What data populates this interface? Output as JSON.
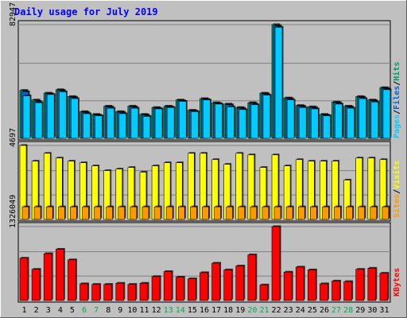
{
  "chart_data": {
    "title": "Daily usage for July 2019",
    "type": "bar",
    "categories": [
      "1",
      "2",
      "3",
      "4",
      "5",
      "6",
      "7",
      "8",
      "9",
      "10",
      "11",
      "12",
      "13",
      "14",
      "15",
      "16",
      "17",
      "18",
      "19",
      "20",
      "21",
      "22",
      "23",
      "24",
      "25",
      "26",
      "27",
      "28",
      "29",
      "30",
      "31"
    ],
    "weekend_days": [
      "6",
      "7",
      "13",
      "14",
      "20",
      "21",
      "27",
      "28"
    ],
    "colors": {
      "background": "#c0c0c0",
      "title": "#0000ff",
      "pages": "#00ccff",
      "files": "#0066cc",
      "hits": "#009966",
      "sites": "#ff9900",
      "visits": "#ffff00",
      "kbytes": "#ff0000",
      "day_label": "#0000ff",
      "weekend_label": "#00aa55"
    },
    "panels": [
      {
        "id": "hits-files-pages",
        "ytick": "82947",
        "ymax": 82947,
        "legend": [
          {
            "text": "Pages",
            "color": "#00ccff"
          },
          {
            "text": "/",
            "color": "#000000"
          },
          {
            "text": "Files",
            "color": "#0066cc"
          },
          {
            "text": "/",
            "color": "#000000"
          },
          {
            "text": "Hits",
            "color": "#009966"
          }
        ],
        "series": [
          {
            "name": "Hits",
            "color": "#009966",
            "values": [
              35000,
              28000,
              33000,
              35500,
              30500,
              19500,
              17500,
              23500,
              19500,
              23500,
              17500,
              22500,
              23500,
              28000,
              20500,
              29000,
              26000,
              25000,
              22500,
              26000,
              33000,
              82947,
              29500,
              24000,
              23000,
              17500,
              26500,
              23500,
              30500,
              28000,
              37000
            ]
          },
          {
            "name": "Files",
            "color": "#0066cc",
            "values": [
              34000,
              27000,
              32500,
              35000,
              30000,
              19000,
              17000,
              23000,
              19000,
              23000,
              17000,
              22000,
              23000,
              27500,
              20000,
              28500,
              25500,
              24500,
              22000,
              25500,
              32500,
              82000,
              29000,
              23500,
              22500,
              17000,
              26000,
              23000,
              30000,
              27500,
              36500
            ]
          },
          {
            "name": "Pages",
            "color": "#00ccff",
            "values": [
              31000,
              26000,
              32000,
              34000,
              29000,
              18000,
              16500,
              22000,
              18000,
              22000,
              16000,
              21500,
              22500,
              27000,
              19500,
              28000,
              25000,
              23000,
              21000,
              24500,
              31500,
              81000,
              28000,
              22500,
              21500,
              16500,
              25000,
              22000,
              29000,
              26500,
              35500
            ]
          }
        ]
      },
      {
        "id": "visits-sites",
        "ytick": "4697",
        "ymax": 4697,
        "legend": [
          {
            "text": "Sites",
            "color": "#ff9900"
          },
          {
            "text": "/",
            "color": "#000000"
          },
          {
            "text": "Visits",
            "color": "#ffff00"
          }
        ],
        "series": [
          {
            "name": "Visits",
            "color": "#ffff00",
            "values": [
              4697,
              3700,
              4200,
              3900,
              3700,
              3600,
              3400,
              3100,
              3200,
              3300,
              3000,
              3400,
              3600,
              3600,
              4200,
              4200,
              3800,
              3500,
              4200,
              4100,
              3300,
              4100,
              3400,
              3800,
              3700,
              3700,
              3700,
              2500,
              3900,
              3900,
              3800
            ]
          },
          {
            "name": "Sites",
            "color": "#ff9900",
            "values": [
              800,
              800,
              800,
              800,
              800,
              800,
              800,
              800,
              800,
              800,
              800,
              800,
              800,
              800,
              800,
              800,
              800,
              800,
              800,
              800,
              800,
              800,
              800,
              800,
              800,
              800,
              800,
              800,
              800,
              800,
              800
            ]
          }
        ]
      },
      {
        "id": "kbytes",
        "ytick": "1326049",
        "ymax": 1326049,
        "legend": [
          {
            "text": "KBytes",
            "color": "#ff0000"
          }
        ],
        "series": [
          {
            "name": "KBytes",
            "color": "#ff0000",
            "values": [
              760000,
              560000,
              840000,
              920000,
              730000,
              300000,
              290000,
              290000,
              310000,
              290000,
              310000,
              430000,
              520000,
              420000,
              390000,
              500000,
              670000,
              550000,
              620000,
              820000,
              280000,
              1326049,
              510000,
              600000,
              550000,
              300000,
              350000,
              340000,
              560000,
              580000,
              490000
            ]
          }
        ]
      }
    ]
  }
}
